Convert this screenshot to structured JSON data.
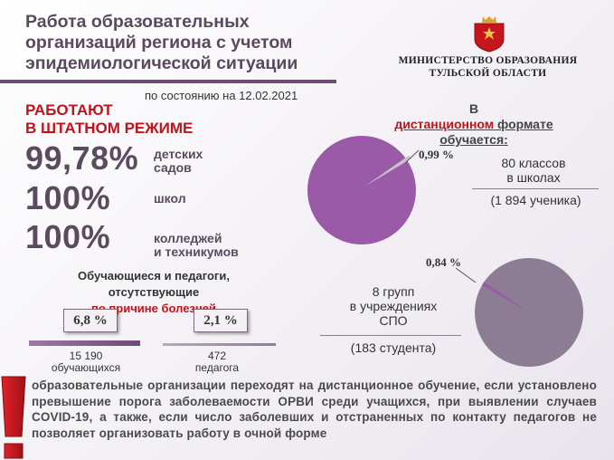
{
  "header": {
    "title_lines": [
      "Работа образовательных",
      "организаций региона с учетом",
      "эпидемиологической ситуации"
    ],
    "ministry_lines": [
      "МИНИСТЕРСТВО ОБРАЗОВАНИЯ",
      "ТУЛЬСКОЙ ОБЛАСТИ"
    ],
    "date_label": "по состоянию на 12.02.2021"
  },
  "regular_mode": {
    "title_lines": [
      "РАБОТАЮТ",
      "В ШТАТНОМ РЕЖИМЕ"
    ],
    "stats": [
      {
        "value": "99,78%",
        "label_lines": [
          "детских",
          "садов"
        ]
      },
      {
        "value": "100%",
        "label_lines": [
          "школ"
        ]
      },
      {
        "value": "100%",
        "label_lines": [
          "колледжей",
          "и техникумов"
        ]
      }
    ]
  },
  "illness": {
    "title_line1": "Обучающиеся и педагоги,",
    "title_line2_prefix": "отсутствующие ",
    "title_line2_highlight": "по причине болезней",
    "students": {
      "percent": "6,8 %",
      "count": "15 190",
      "label": "обучающихся"
    },
    "teachers": {
      "percent": "2,1 %",
      "count": "472",
      "label": "педагога"
    }
  },
  "remote": {
    "title_prefix": "В ",
    "title_highlight": "дистанционном",
    "title_suffix": " формате",
    "title_line2": "обучается:",
    "schools": {
      "pie_label": "0,99 %",
      "fraction": 0.0099,
      "line1": "80 классов",
      "line2": "в школах",
      "detail": "(1 894 ученика)"
    },
    "colleges": {
      "pie_label": "0,84 %",
      "fraction": 0.0084,
      "line1": "8 групп",
      "line2": "в учреждениях",
      "line3": "СПО",
      "detail": "(183 студента)"
    }
  },
  "notice": {
    "text": "образовательные организации переходят на дистанционное обучение, если установлено превышение порога заболеваемости ОРВИ среди учащихся, при выявлении случаев COVID-19, а также, если число заболевших и отстраненных по контакту педагогов не позволяет организовать работу в очной форме"
  },
  "colors": {
    "accent_red": "#c0141c",
    "purple": "#6a4f73",
    "pie_schools": "#9a5aa8",
    "pie_colleges": "#8c7d94",
    "slice": "#c9c2cc"
  }
}
